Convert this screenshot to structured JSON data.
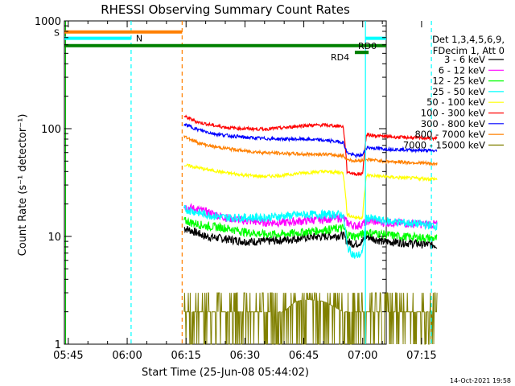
{
  "chart_data": {
    "type": "line",
    "title": "RHESSI Observing Summary Count Rates",
    "xlabel": "Start Time (25-Jun-08 05:44:02)",
    "ylabel": "Count Rate (s⁻¹ detector⁻¹)",
    "yscale": "log",
    "ylim": [
      1,
      1000
    ],
    "xlim_minutes": [
      44,
      126
    ],
    "x_tick_labels": [
      "05:45",
      "06:00",
      "06:15",
      "06:30",
      "06:45",
      "07:00",
      "07:15"
    ],
    "x_tick_minutes": [
      45,
      60,
      75,
      90,
      105,
      120,
      135
    ],
    "y_tick_labels": [
      "1",
      "10",
      "100",
      "1000"
    ],
    "y_tick_values": [
      1,
      10,
      100,
      1000
    ],
    "legend_header": [
      "Det 1,3,4,5,6,9,",
      "FDecim 1, Att 0"
    ],
    "legend_position": "right",
    "footer_date": "14-Oct-2021 19:58",
    "data_start_minute": 74.5,
    "series": [
      {
        "name": "3 - 6 keV",
        "color": "#000000",
        "x": [
          74.5,
          80,
          85,
          90,
          95,
          100,
          105,
          110,
          115,
          116,
          118,
          120,
          121,
          125,
          130,
          135,
          139
        ],
        "y": [
          12,
          10,
          9.5,
          9,
          9,
          9.3,
          9.8,
          10,
          10.3,
          9,
          8.5,
          9,
          10,
          9,
          8.8,
          8.5,
          8.3
        ]
      },
      {
        "name": "6 - 12 keV",
        "color": "#ff00ff",
        "x": [
          74.5,
          80,
          85,
          90,
          95,
          100,
          105,
          110,
          115,
          116,
          118,
          120,
          121,
          125,
          130,
          135,
          139
        ],
        "y": [
          19,
          17,
          15,
          14,
          13.5,
          13.5,
          14,
          14.5,
          15,
          13.5,
          12.5,
          13,
          14,
          13.5,
          13.3,
          13,
          13
        ]
      },
      {
        "name": "12 - 25 keV",
        "color": "#00ff00",
        "x": [
          74.5,
          80,
          85,
          90,
          95,
          100,
          105,
          110,
          115,
          116,
          118,
          120,
          121,
          125,
          130,
          135,
          139
        ],
        "y": [
          14,
          12.5,
          12,
          11,
          10.5,
          10.5,
          11,
          11.5,
          12,
          10.5,
          10,
          10.5,
          11,
          10.5,
          10,
          9.8,
          9.5
        ]
      },
      {
        "name": "25 - 50 keV",
        "color": "#00ffff",
        "x": [
          74.5,
          80,
          85,
          90,
          95,
          100,
          105,
          110,
          115,
          116,
          118,
          120,
          121,
          125,
          130,
          135,
          139
        ],
        "y": [
          18,
          16,
          15,
          15,
          15,
          15.5,
          16,
          16,
          16,
          8,
          6.5,
          7,
          15,
          14,
          13.5,
          13,
          12.5
        ]
      },
      {
        "name": "50 - 100 keV",
        "color": "#ffff00",
        "x": [
          74.5,
          80,
          85,
          90,
          95,
          100,
          105,
          110,
          115,
          116,
          118,
          120,
          121,
          125,
          130,
          135,
          139
        ],
        "y": [
          46,
          42,
          39,
          37,
          36,
          37,
          39,
          40,
          39,
          16,
          15,
          15,
          37,
          36,
          35,
          34.5,
          34
        ]
      },
      {
        "name": "100 - 300 keV",
        "color": "#ff0000",
        "x": [
          74.5,
          78,
          82,
          86,
          90,
          95,
          100,
          105,
          110,
          115,
          116,
          118,
          120,
          121,
          125,
          130,
          135,
          139
        ],
        "y": [
          130,
          115,
          107,
          102,
          100,
          99,
          102,
          107,
          108,
          105,
          40,
          38,
          38,
          88,
          85,
          83,
          82,
          81
        ]
      },
      {
        "name": "300 - 800 keV",
        "color": "#0000ff",
        "x": [
          74.5,
          78,
          82,
          86,
          90,
          95,
          100,
          105,
          110,
          115,
          116,
          118,
          120,
          121,
          125,
          130,
          135,
          139
        ],
        "y": [
          110,
          98,
          90,
          86,
          83,
          81,
          80,
          80,
          78,
          75,
          60,
          56,
          57,
          67,
          65,
          64,
          63,
          62
        ]
      },
      {
        "name": "800 - 7000 keV",
        "color": "#ff8000",
        "x": [
          74.5,
          78,
          82,
          86,
          90,
          95,
          100,
          105,
          110,
          115,
          116,
          118,
          120,
          121,
          125,
          130,
          135,
          139
        ],
        "y": [
          85,
          74,
          68,
          65,
          62,
          60,
          59,
          58,
          58,
          56,
          52,
          50,
          51,
          52,
          50,
          49,
          48,
          47
        ]
      },
      {
        "name": "7000 - 15000 keV",
        "color": "#808000",
        "x": [
          74.5,
          80,
          85,
          90,
          95,
          100,
          103,
          106,
          110,
          115,
          120,
          125,
          130,
          135,
          139
        ],
        "y": [
          2,
          2,
          2,
          2,
          2,
          2,
          2.5,
          2.6,
          2.5,
          2,
          2,
          2,
          2,
          2,
          2
        ]
      }
    ],
    "markers": {
      "vlines": [
        {
          "minute": 44.3,
          "color": "#00c000",
          "style": "solid"
        },
        {
          "minute": 61,
          "color": "#00ffff",
          "style": "dashed"
        },
        {
          "minute": 74,
          "color": "#ff8000",
          "style": "dashed"
        },
        {
          "minute": 120.7,
          "color": "#00ffff",
          "style": "solid"
        },
        {
          "minute": 137.5,
          "color": "#00ffff",
          "style": "dashed"
        }
      ],
      "bars": [
        {
          "label": "S",
          "color": "#ff8000",
          "x0": 44,
          "x1": 74,
          "y": 790
        },
        {
          "label": "N",
          "color": "#00ffff",
          "x0": 44,
          "x1": 61,
          "y": 690
        },
        {
          "label": "",
          "color": "#00ffff",
          "x0": 120.7,
          "x1": 142,
          "y": 690
        },
        {
          "label": "",
          "color": "#008000",
          "x0": 44,
          "x1": 142,
          "y": 590
        },
        {
          "label": "RD0",
          "color": "#008000",
          "x0": 118,
          "x1": 121.5,
          "y": 510
        },
        {
          "label": "RD4",
          "color": "#008000",
          "x0": 118,
          "x1": 121.5,
          "y": 510
        }
      ]
    }
  }
}
